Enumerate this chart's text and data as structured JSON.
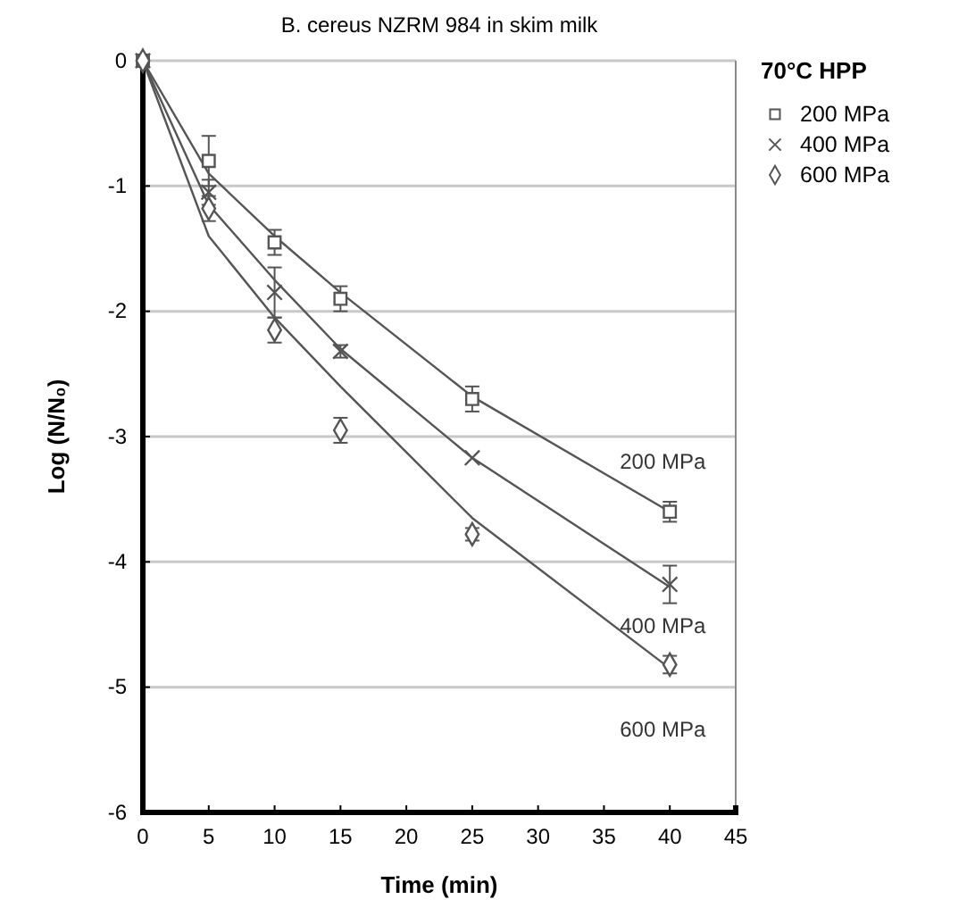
{
  "chart_data": {
    "type": "scatter",
    "title": "B. cereus NZRM 984 in skim milk",
    "xlabel": "Time (min)",
    "ylabel": "Log (N/N₀)",
    "legend_title": "70°C HPP",
    "legend": "top right",
    "grid": "y",
    "xlim": [
      0,
      45
    ],
    "xticks": [
      0,
      5,
      10,
      15,
      20,
      25,
      30,
      35,
      40,
      45
    ],
    "ylim": [
      -6,
      0
    ],
    "yticks": [
      -6,
      -5,
      -4,
      -3,
      -2,
      -1,
      0
    ],
    "series": [
      {
        "name": "200 MPa",
        "color": "#555555",
        "marker": "square",
        "x": [
          0,
          5,
          10,
          15,
          25,
          40
        ],
        "values": [
          0,
          -0.8,
          -1.45,
          -1.9,
          -2.7,
          -3.6
        ],
        "errors": [
          null,
          0.2,
          0.1,
          0.1,
          0.1,
          0.08
        ]
      },
      {
        "name": "400 MPa",
        "color": "#555555",
        "marker": "cross",
        "x": [
          0,
          5,
          10,
          15,
          25,
          40
        ],
        "values": [
          0,
          -1.05,
          -1.85,
          -2.32,
          -3.17,
          -4.18
        ],
        "errors": [
          null,
          0.1,
          0.2,
          0.05,
          null,
          0.15
        ]
      },
      {
        "name": "600 MPa",
        "color": "#555555",
        "marker": "diamond",
        "x": [
          0,
          5,
          10,
          15,
          25,
          40
        ],
        "values": [
          0,
          -1.18,
          -2.15,
          -2.95,
          -3.78,
          -4.82
        ],
        "errors": [
          null,
          0.1,
          0.1,
          0.1,
          0.05,
          0.07
        ]
      },
      {
        "type": "line",
        "color": "#555555",
        "marker": "none",
        "x": [
          0,
          5,
          10,
          15,
          25,
          40
        ],
        "values": [
          0,
          -0.9,
          -1.4,
          -1.85,
          -2.68,
          -3.6
        ]
      },
      {
        "type": "line",
        "color": "#555555",
        "marker": "none",
        "x": [
          0,
          5,
          10,
          15,
          25,
          40
        ],
        "values": [
          0,
          -1.15,
          -1.75,
          -2.3,
          -3.17,
          -4.2
        ]
      },
      {
        "type": "line",
        "color": "#555555",
        "marker": "none",
        "x": [
          0,
          5,
          10,
          15,
          25,
          40
        ],
        "values": [
          0,
          -1.4,
          -2.05,
          -2.6,
          -3.65,
          -4.85
        ]
      }
    ],
    "annotations": [
      "200 MPa",
      "400 MPa",
      "600 MPa"
    ]
  }
}
